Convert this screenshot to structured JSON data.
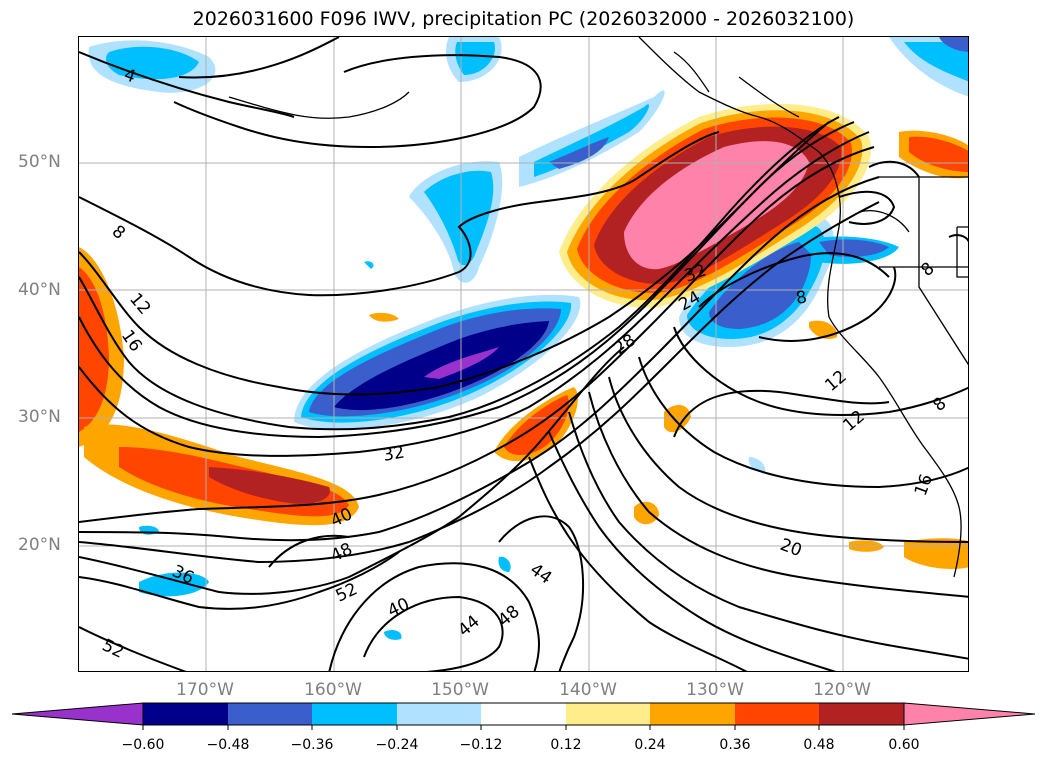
{
  "title": "2026031600 F096 IWV, precipitation PC (2026032000 - 2026032100)",
  "latitude_labels": [
    "50°N",
    "40°N",
    "30°N",
    "20°N"
  ],
  "longitude_labels": [
    "170°W",
    "160°W",
    "150°W",
    "140°W",
    "130°W",
    "120°W"
  ],
  "colorbar": {
    "ticks": [
      "−0.60",
      "−0.48",
      "−0.36",
      "−0.24",
      "−0.12",
      "0.12",
      "0.24",
      "0.36",
      "0.48",
      "0.60"
    ],
    "colors": [
      "#9932cc",
      "#00008b",
      "#3a5fcd",
      "#00bfff",
      "#b0e2ff",
      "#ffffff",
      "#ffec8b",
      "#ffa500",
      "#ff4500",
      "#b22222",
      "#ff82ab"
    ]
  },
  "contour_labels": [
    "4",
    "8",
    "12",
    "16",
    "32",
    "24",
    "28",
    "32",
    "40",
    "48",
    "52",
    "36",
    "40",
    "44",
    "48",
    "44",
    "20",
    "52",
    "12",
    "12",
    "8",
    "16",
    "8",
    "8"
  ],
  "colors": {
    "grid": "#b0b0b0",
    "axis_text": "#808080",
    "contour": "#000000"
  }
}
